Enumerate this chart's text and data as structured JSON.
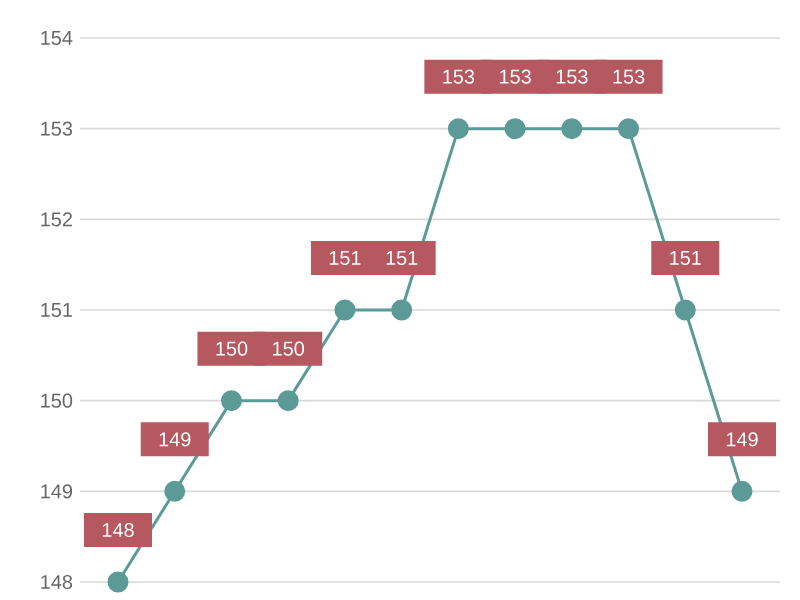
{
  "chart_data": {
    "type": "line",
    "categories": [
      null,
      null,
      null,
      null,
      null,
      null,
      null,
      null,
      null,
      null,
      null,
      null
    ],
    "series": [
      {
        "color": "#5b9a97",
        "values": [
          148,
          149,
          150,
          150,
          151,
          151,
          153,
          153,
          153,
          153,
          151,
          149
        ]
      }
    ],
    "ylim": [
      148,
      154
    ],
    "yticks": [
      148,
      149,
      150,
      151,
      152,
      153,
      154
    ],
    "grid": "y",
    "marker": "circle",
    "line_style": "solid",
    "data_labels": true,
    "tick_labels": "y"
  }
}
